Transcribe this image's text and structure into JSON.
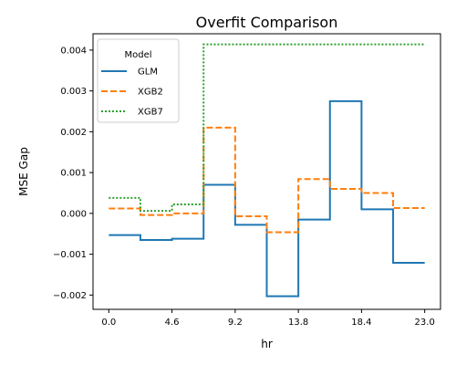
{
  "chart_data": {
    "type": "line",
    "title": "Overfit Comparison",
    "xlabel": "hr",
    "ylabel": "MSE Gap",
    "x": [
      0.0,
      2.3,
      4.6,
      6.9,
      9.2,
      11.5,
      13.8,
      16.1,
      18.4,
      20.7,
      23.0
    ],
    "x_ticks": [
      "0.0",
      "4.6",
      "9.2",
      "13.8",
      "18.4",
      "23.0"
    ],
    "y_ticks": [
      "0.004",
      "0.003",
      "0.002",
      "0.001",
      "0.000",
      "−0.001",
      "−0.002"
    ],
    "xlim": [
      -1.15,
      24.15
    ],
    "ylim": [
      -0.00235,
      0.0044
    ],
    "step": "post",
    "grid": false,
    "legend_position": "top-left",
    "legend_title": "Model",
    "series": [
      {
        "name": "GLM",
        "style": "solid",
        "color": "#1f77b4",
        "values": [
          -0.00053,
          -0.00065,
          -0.00062,
          0.0007,
          -0.00028,
          -0.00203,
          -0.00015,
          0.00275,
          0.0001,
          -0.00121,
          -0.00121
        ]
      },
      {
        "name": "XGB2",
        "style": "dashed",
        "color": "#ff7f0e",
        "values": [
          0.00012,
          -4e-05,
          0.0,
          0.0021,
          -7e-05,
          -0.00046,
          0.00084,
          0.0006,
          0.0005,
          0.00013,
          0.00013
        ]
      },
      {
        "name": "XGB7",
        "style": "dotted",
        "color": "#2ca02c",
        "values": [
          0.00038,
          6e-05,
          0.00022,
          0.00414,
          0.00414,
          0.00414,
          0.00414,
          0.00414,
          0.00414,
          0.00414,
          0.00414
        ]
      }
    ]
  }
}
